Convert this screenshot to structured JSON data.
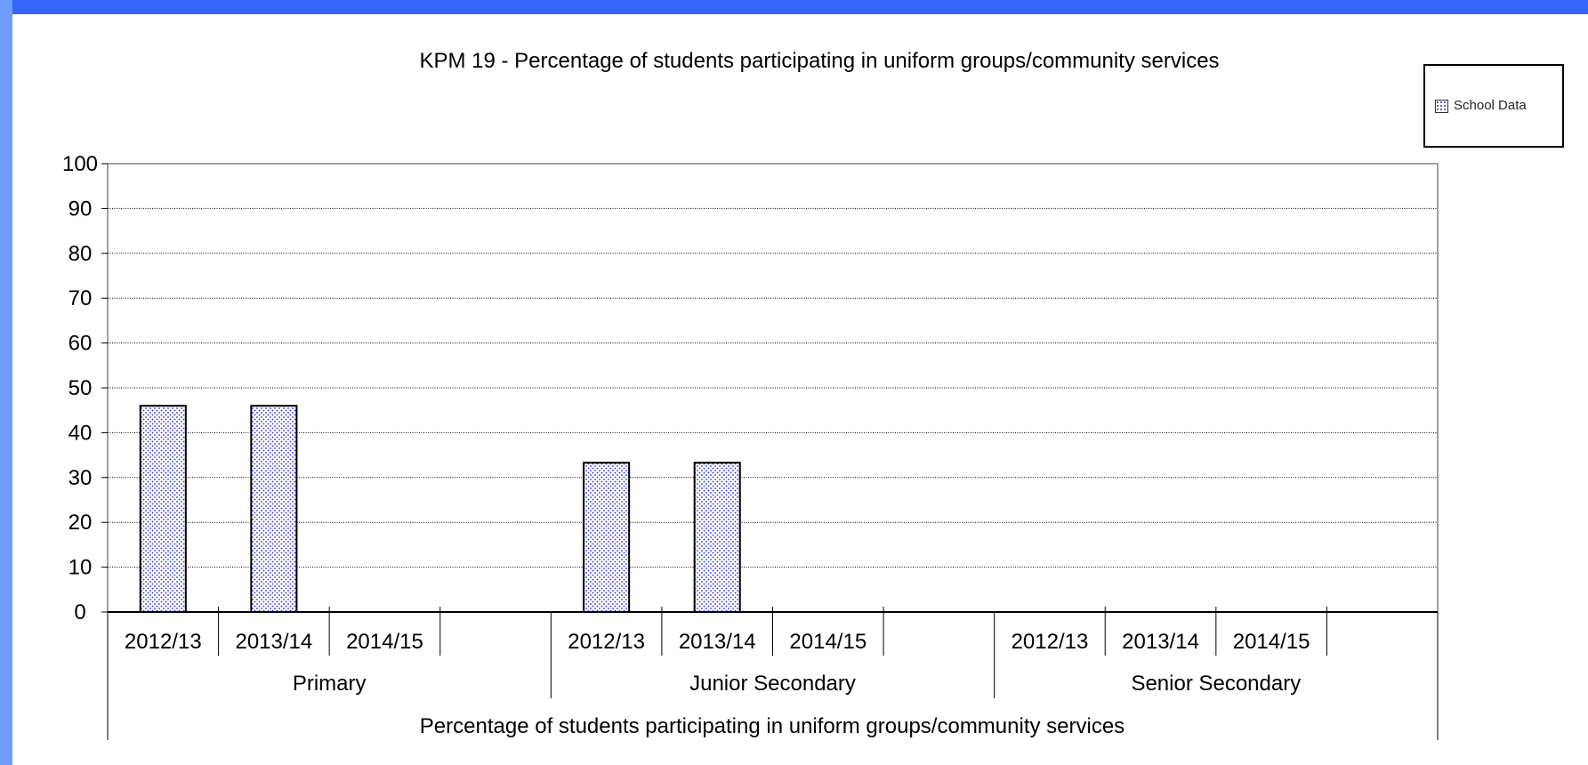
{
  "chart_data": {
    "type": "bar",
    "title": "KPM 19 - Percentage of students participating in uniform groups/community services",
    "xlabel": "Percentage of students participating in uniform groups/community services",
    "ylabel": "",
    "ylim": [
      0,
      100
    ],
    "yticks": [
      "0",
      "10",
      "20",
      "30",
      "40",
      "50",
      "60",
      "70",
      "80",
      "90",
      "100"
    ],
    "groups": [
      {
        "name": "Primary",
        "categories": [
          "2012/13",
          "2013/14",
          "2014/15"
        ]
      },
      {
        "name": "Junior Secondary",
        "categories": [
          "2012/13",
          "2013/14",
          "2014/15"
        ]
      },
      {
        "name": "Senior Secondary",
        "categories": [
          "2012/13",
          "2013/14",
          "2014/15"
        ]
      }
    ],
    "series": [
      {
        "name": "School Data",
        "values": [
          [
            46,
            46,
            null
          ],
          [
            33.3,
            33.3,
            null
          ],
          [
            null,
            null,
            null
          ]
        ]
      }
    ],
    "grid": true,
    "legend_position": "top-right",
    "bar_pattern_color": "#2a2adf"
  }
}
